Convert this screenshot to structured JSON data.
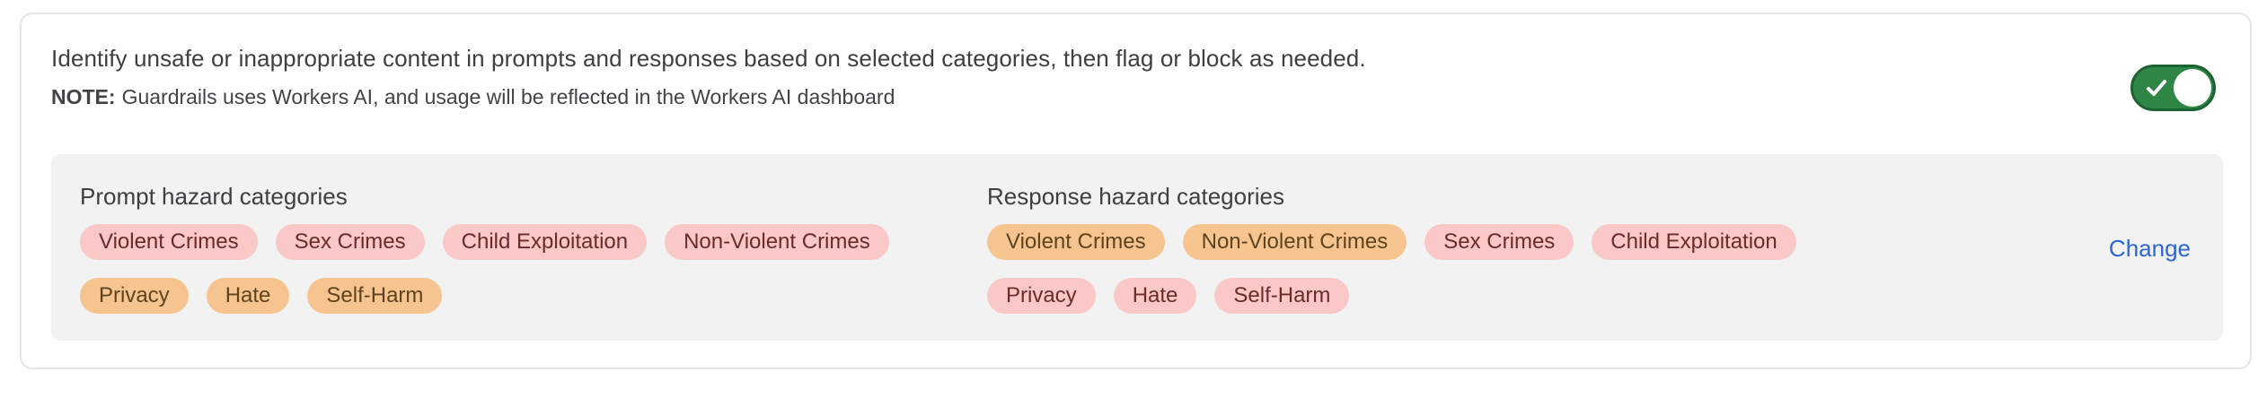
{
  "colors": {
    "toggle_on_green": "#2e8745",
    "toggle_border_green": "#1d6233",
    "link_blue": "#2d64d8",
    "chip_pink_bg": "#fac8c6",
    "chip_pink_text": "#6b2b29",
    "chip_orange_bg": "#f6c58f",
    "chip_orange_text": "#5f431e",
    "panel_bg": "#f2f2f3",
    "card_border": "#e3e5e7"
  },
  "header": {
    "description": "Identify unsafe or inappropriate content in prompts and responses based on selected categories, then flag or block as needed.",
    "note_label": "NOTE:",
    "note_text": "Guardrails uses Workers AI, and usage will be reflected in the Workers AI dashboard",
    "toggle": {
      "state": "on",
      "icon": "check-icon"
    }
  },
  "panel": {
    "prompt_section": {
      "title": "Prompt hazard categories",
      "chips": [
        {
          "label": "Violent Crimes",
          "variant": "pink"
        },
        {
          "label": "Sex Crimes",
          "variant": "pink"
        },
        {
          "label": "Child Exploitation",
          "variant": "pink"
        },
        {
          "label": "Non-Violent Crimes",
          "variant": "pink"
        },
        {
          "label": "Privacy",
          "variant": "orange"
        },
        {
          "label": "Hate",
          "variant": "orange"
        },
        {
          "label": "Self-Harm",
          "variant": "orange"
        }
      ]
    },
    "response_section": {
      "title": "Response hazard categories",
      "chips": [
        {
          "label": "Violent Crimes",
          "variant": "orange"
        },
        {
          "label": "Non-Violent Crimes",
          "variant": "orange"
        },
        {
          "label": "Sex Crimes",
          "variant": "pink"
        },
        {
          "label": "Child Exploitation",
          "variant": "pink"
        },
        {
          "label": "Privacy",
          "variant": "pink"
        },
        {
          "label": "Hate",
          "variant": "pink"
        },
        {
          "label": "Self-Harm",
          "variant": "pink"
        }
      ]
    },
    "change_link": "Change"
  }
}
